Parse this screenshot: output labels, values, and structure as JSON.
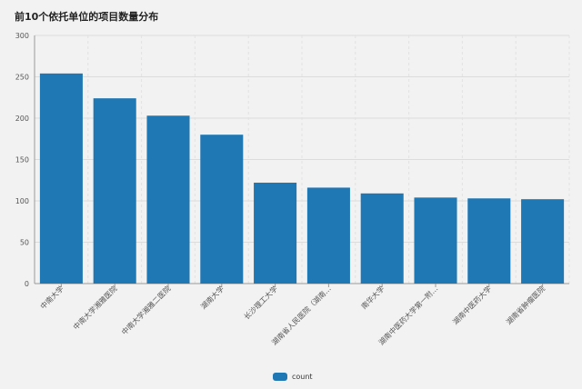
{
  "chart_data": {
    "type": "bar",
    "title": "前10个依托单位的项目数量分布",
    "categories": [
      "中南大学",
      "中南大学湘雅医院",
      "中南大学湘雅二医院",
      "湖南大学",
      "长沙理工大学",
      "湖南省人民医院（湖南…",
      "南华大学",
      "湖南中医药大学第一附…",
      "湖南中医药大学",
      "湖南省肿瘤医院"
    ],
    "series": [
      {
        "name": "count",
        "values": [
          254,
          224,
          203,
          180,
          122,
          116,
          109,
          104,
          103,
          102
        ]
      }
    ],
    "xlabel": "",
    "ylabel": "",
    "ylim": [
      0,
      300
    ],
    "yticks": [
      0,
      50,
      100,
      150,
      200,
      250,
      300
    ],
    "grid": true,
    "legend": "bottom-center",
    "color": "#1f77b4"
  }
}
